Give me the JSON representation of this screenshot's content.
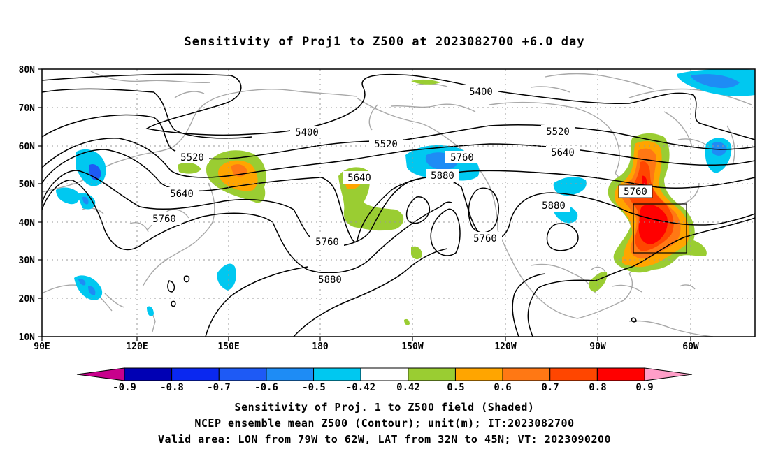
{
  "title": "Sensitivity of Proj1 to Z500 at 2023082700 +6.0 day",
  "lon_ticks": [
    "90E",
    "120E",
    "150E",
    "180",
    "150W",
    "120W",
    "90W",
    "60W"
  ],
  "lat_ticks": [
    "10N",
    "20N",
    "30N",
    "40N",
    "50N",
    "60N",
    "70N",
    "80N"
  ],
  "contour_labels": [
    {
      "text": "5400"
    },
    {
      "text": "5400"
    },
    {
      "text": "5520"
    },
    {
      "text": "5520"
    },
    {
      "text": "5520"
    },
    {
      "text": "5640"
    },
    {
      "text": "5640"
    },
    {
      "text": "5640"
    },
    {
      "text": "5760"
    },
    {
      "text": "5760"
    },
    {
      "text": "5760"
    },
    {
      "text": "5760"
    },
    {
      "text": "5760"
    },
    {
      "text": "5880"
    },
    {
      "text": "5880"
    },
    {
      "text": "5880"
    }
  ],
  "colorbar": {
    "labels": [
      "-0.9",
      "-0.8",
      "-0.7",
      "-0.6",
      "-0.5",
      "-0.42",
      "0.42",
      "0.5",
      "0.6",
      "0.7",
      "0.8",
      "0.9"
    ],
    "colors": [
      "#0000b4",
      "#0a28f0",
      "#1e5af5",
      "#1e8cf5",
      "#00c8f0",
      "#ffffff",
      "#9acd32",
      "#ffa500",
      "#ff7814",
      "#ff4600",
      "#ff0000"
    ],
    "low_color": "#c8008c",
    "high_color": "#ff9ec8"
  },
  "captions": {
    "line1": "Sensitivity of Proj. 1 to Z500 field (Shaded)",
    "line2": "NCEP ensemble mean Z500 (Contour); unit(m); IT:2023082700",
    "line3": "Valid area: LON from 79W to 62W, LAT from 32N to 45N; VT: 2023090200"
  },
  "valid_area": {
    "lon_min": -79,
    "lon_max": -62,
    "lat_min": 32,
    "lat_max": 45
  }
}
